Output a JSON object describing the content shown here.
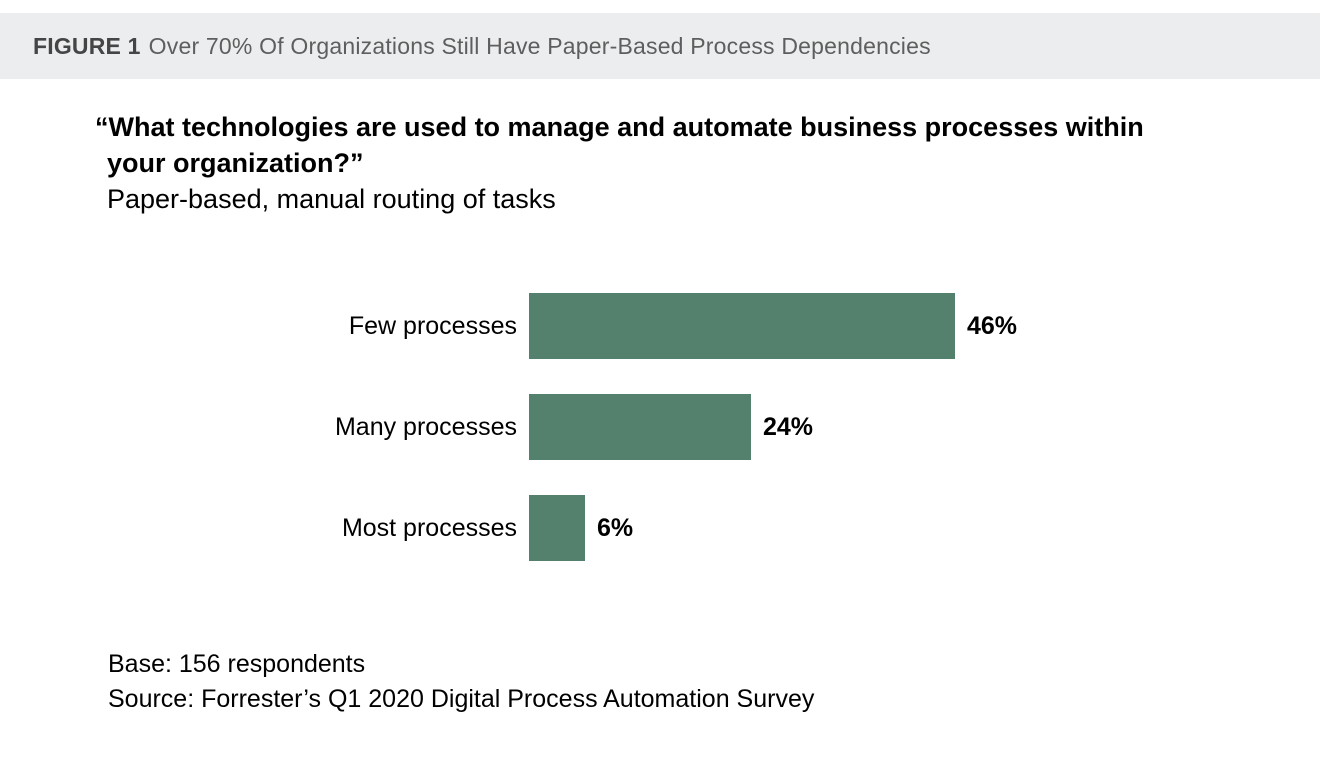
{
  "header": {
    "figure_label": "FIGURE 1",
    "title": "Over 70% Of Organizations Still Have Paper-Based Process Dependencies"
  },
  "question": {
    "line1": "“What technologies are used to manage and automate business processes within",
    "line2": "your organization?”",
    "subtitle": "Paper-based, manual routing of tasks"
  },
  "chart_data": {
    "type": "bar",
    "orientation": "horizontal",
    "title": "Paper-based, manual routing of tasks",
    "categories": [
      "Few processes",
      "Many processes",
      "Most processes"
    ],
    "values": [
      46,
      24,
      6
    ],
    "value_labels": [
      "46%",
      "24%",
      "6%"
    ],
    "xlabel": "",
    "ylabel": "",
    "xlim": [
      0,
      50
    ],
    "grid": false,
    "legend": false,
    "bar_color": "#54806E",
    "value_label_position": "right-of-bar"
  },
  "footnotes": {
    "base": "Base: 156 respondents",
    "source": "Source: Forrester’s Q1 2020 Digital Process Automation Survey"
  },
  "colors": {
    "header_bg": "#ECEDEE",
    "header_label_text": "#454545",
    "header_title_text": "#5E5E5E",
    "bar": "#54806E",
    "body_text": "#000000",
    "page_bg": "#FFFFFF"
  }
}
